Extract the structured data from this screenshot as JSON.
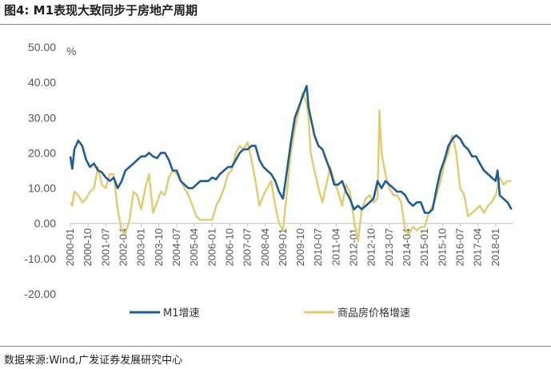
{
  "header": {
    "title": "图4:  M1表现大致同步于房地产周期"
  },
  "footer": {
    "source": "数据来源:Wind,广发证券发展研究中心"
  },
  "chart_data": {
    "type": "line",
    "title": "M1表现大致同步于房地产周期",
    "ylabel": "%",
    "ylim": [
      -20,
      50
    ],
    "yticks": [
      "50.00",
      "40.00",
      "30.00",
      "20.00",
      "10.00",
      "0.00",
      "-10.00",
      "-20.00"
    ],
    "ytick_values": [
      50,
      40,
      30,
      20,
      10,
      0,
      -10,
      -20
    ],
    "xlim": [
      2000.0,
      2018.75
    ],
    "xticks": [
      "2000-01",
      "2000-10",
      "2001-07",
      "2002-04",
      "2003-01",
      "2003-10",
      "2004-07",
      "2005-04",
      "2006-01",
      "2006-10",
      "2007-07",
      "2008-04",
      "2009-01",
      "2009-10",
      "2010-07",
      "2011-04",
      "2012-01",
      "2012-10",
      "2013-07",
      "2014-04",
      "2015-01",
      "2015-10",
      "2016-07",
      "2017-04",
      "2018-01"
    ],
    "legend": {
      "placement": "bottom"
    },
    "colors": {
      "m1": "#1b5e96",
      "house": "#e3ca6b",
      "axis": "#bfbfbf",
      "text": "#555555"
    },
    "series": [
      {
        "name": "M1增速",
        "key": "m1",
        "x": [
          2000.0,
          2000.08,
          2000.17,
          2000.33,
          2000.5,
          2000.67,
          2000.83,
          2001.0,
          2001.17,
          2001.33,
          2001.5,
          2001.67,
          2001.83,
          2002.0,
          2002.17,
          2002.33,
          2002.5,
          2002.67,
          2002.83,
          2003.0,
          2003.17,
          2003.33,
          2003.5,
          2003.67,
          2003.83,
          2004.0,
          2004.17,
          2004.33,
          2004.5,
          2004.67,
          2004.83,
          2005.0,
          2005.17,
          2005.33,
          2005.5,
          2005.67,
          2005.83,
          2006.0,
          2006.17,
          2006.33,
          2006.5,
          2006.67,
          2006.83,
          2007.0,
          2007.17,
          2007.33,
          2007.5,
          2007.67,
          2007.83,
          2008.0,
          2008.17,
          2008.33,
          2008.5,
          2008.67,
          2008.83,
          2009.0,
          2009.17,
          2009.33,
          2009.5,
          2009.67,
          2009.83,
          2010.0,
          2010.08,
          2010.17,
          2010.33,
          2010.5,
          2010.67,
          2010.83,
          2011.0,
          2011.17,
          2011.33,
          2011.5,
          2011.67,
          2011.83,
          2012.0,
          2012.17,
          2012.33,
          2012.5,
          2012.67,
          2012.83,
          2013.0,
          2013.17,
          2013.33,
          2013.5,
          2013.67,
          2013.83,
          2014.0,
          2014.17,
          2014.33,
          2014.5,
          2014.67,
          2014.83,
          2015.0,
          2015.17,
          2015.33,
          2015.5,
          2015.67,
          2015.83,
          2016.0,
          2016.17,
          2016.33,
          2016.5,
          2016.67,
          2016.83,
          2017.0,
          2017.17,
          2017.33,
          2017.5,
          2017.67,
          2017.83,
          2018.0,
          2018.08,
          2018.17,
          2018.33,
          2018.5,
          2018.67
        ],
        "values": [
          19,
          15.5,
          21,
          23.5,
          22,
          18,
          16,
          17,
          15,
          14.5,
          13,
          12,
          13,
          10,
          12,
          15,
          16,
          17,
          18,
          19,
          19,
          20,
          19,
          18.5,
          20,
          20,
          18,
          15,
          15,
          12,
          11,
          10,
          10,
          11,
          12,
          12,
          12,
          13,
          12.5,
          14,
          15,
          16,
          16,
          18,
          20,
          21,
          21,
          22,
          22,
          18,
          16,
          15,
          14,
          12,
          9,
          7,
          15,
          23,
          30,
          33,
          36,
          39,
          33,
          30,
          25,
          22,
          21,
          18,
          15,
          11,
          11,
          12,
          9,
          7,
          4,
          5,
          4,
          5,
          6,
          7,
          12,
          10,
          12,
          11,
          10,
          9,
          9,
          8,
          6,
          5,
          6,
          6,
          3,
          3,
          4,
          10,
          15,
          18,
          22,
          24,
          25,
          24,
          22,
          21,
          19,
          19,
          17,
          15,
          14,
          13,
          12,
          15,
          8,
          7,
          6,
          4
        ]
      },
      {
        "name": "商品房价格增速",
        "key": "house",
        "x": [
          2000.0,
          2000.08,
          2000.17,
          2000.33,
          2000.5,
          2000.67,
          2000.83,
          2001.0,
          2001.17,
          2001.33,
          2001.5,
          2001.67,
          2001.83,
          2002.0,
          2002.17,
          2002.33,
          2002.5,
          2002.67,
          2002.83,
          2003.0,
          2003.17,
          2003.33,
          2003.5,
          2003.67,
          2003.83,
          2004.0,
          2004.17,
          2004.33,
          2004.5,
          2004.67,
          2004.83,
          2005.0,
          2005.17,
          2005.33,
          2005.5,
          2005.67,
          2005.83,
          2006.0,
          2006.17,
          2006.33,
          2006.5,
          2006.67,
          2006.83,
          2007.0,
          2007.17,
          2007.33,
          2007.5,
          2007.67,
          2007.83,
          2008.0,
          2008.17,
          2008.33,
          2008.5,
          2008.67,
          2008.83,
          2009.0,
          2009.17,
          2009.33,
          2009.5,
          2009.67,
          2009.83,
          2010.0,
          2010.08,
          2010.17,
          2010.33,
          2010.5,
          2010.67,
          2010.83,
          2011.0,
          2011.17,
          2011.33,
          2011.5,
          2011.67,
          2011.83,
          2012.0,
          2012.17,
          2012.33,
          2012.5,
          2012.67,
          2012.83,
          2013.0,
          2013.08,
          2013.17,
          2013.33,
          2013.5,
          2013.67,
          2013.83,
          2014.0,
          2014.17,
          2014.33,
          2014.5,
          2014.67,
          2014.83,
          2015.0,
          2015.17,
          2015.33,
          2015.5,
          2015.67,
          2015.83,
          2016.0,
          2016.17,
          2016.33,
          2016.5,
          2016.67,
          2016.83,
          2017.0,
          2017.17,
          2017.33,
          2017.5,
          2017.67,
          2017.83,
          2018.0,
          2018.17,
          2018.33,
          2018.5,
          2018.67
        ],
        "values": [
          6,
          5,
          9,
          8,
          6,
          7,
          9,
          10,
          16,
          11,
          10,
          14,
          14,
          4,
          -2,
          -3,
          1,
          9,
          8,
          4,
          10,
          14,
          3,
          6,
          9,
          8,
          13,
          15,
          14,
          12,
          10,
          8,
          5,
          2,
          1,
          1,
          1,
          1,
          5,
          7,
          10,
          14,
          15,
          20,
          22,
          21,
          23,
          18,
          12,
          5,
          8,
          10,
          12,
          5,
          0,
          -2,
          9,
          20,
          27,
          32,
          37,
          34,
          30,
          20,
          15,
          10,
          6,
          11,
          16,
          12,
          9,
          5,
          11,
          9,
          1,
          -5,
          4,
          7,
          8,
          6,
          7,
          32,
          20,
          14,
          10,
          8,
          8,
          6,
          -2,
          -3,
          -1,
          -2,
          -1,
          -1,
          3,
          5,
          8,
          12,
          17,
          20,
          25,
          20,
          10,
          8,
          2,
          3,
          4,
          5,
          3,
          5,
          6,
          8,
          13,
          11,
          12,
          12
        ]
      }
    ]
  }
}
